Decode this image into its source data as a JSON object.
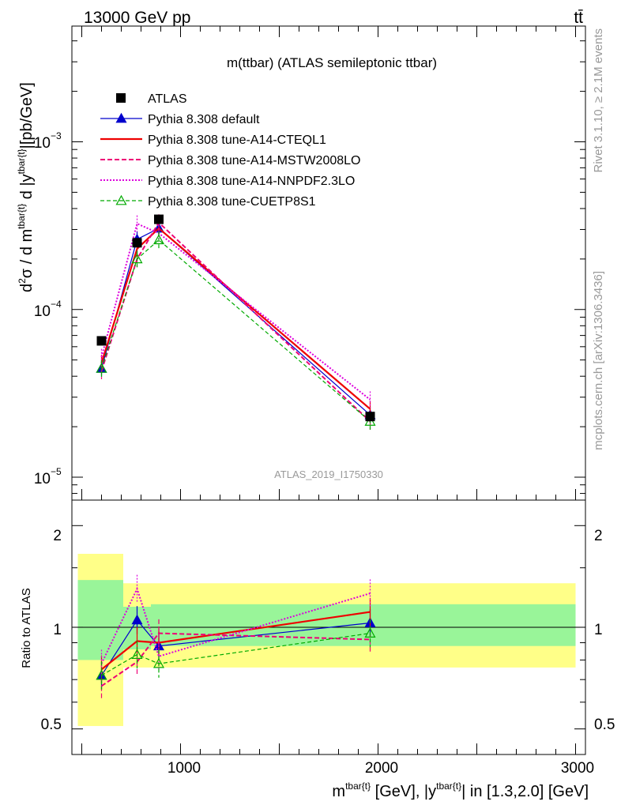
{
  "header": {
    "left": "13000 GeV pp",
    "right": "tt̄",
    "plot_title": "m(ttbar) (ATLAS semileptonic ttbar)",
    "analysis_id": "ATLAS_2019_I1750330",
    "side_top": "Rivet 3.1.10, ≥ 2.1M events",
    "side_bottom": "mcplots.cern.ch [arXiv:1306.3436]"
  },
  "axes": {
    "ylabel_main": "d²σ / d m^{tbar{t}} d |y^{tbar{t}}|[pb/GeV]",
    "ylabel_ratio": "Ratio to ATLAS",
    "xlabel": "m^{tbar{t}} [GeV], |y^{tbar{t}}| in [1.3,2.0] [GeV]",
    "x_tick_labels": [
      "1000",
      "2000",
      "3000"
    ],
    "y_tick_labels_main": [
      "10",
      "10",
      "10"
    ],
    "y_tick_exponents_main": [
      "−3",
      "−4",
      "−5"
    ],
    "y_tick_labels_ratio": [
      "2",
      "1",
      "0.5"
    ]
  },
  "chart_data": {
    "type": "line",
    "xlim": [
      450,
      3050
    ],
    "ylim_main": [
      7.3e-06,
      0.0049
    ],
    "ylim_ratio": [
      0.42,
      2.38
    ],
    "y_scale": "log",
    "x": [
      600,
      780,
      890,
      1960
    ],
    "bin_edges": [
      480,
      710,
      850,
      950,
      3000
    ],
    "series": [
      {
        "name": "ATLAS",
        "key": "data",
        "values": [
          6.5e-05,
          0.00025,
          0.000345,
          2.3e-05
        ],
        "color": "#000000"
      },
      {
        "name": "Pythia 8.308 default",
        "key": "default",
        "values": [
          4.45e-05,
          0.000262,
          0.000305,
          2.35e-05
        ],
        "ratio": [
          0.72,
          1.05,
          0.88,
          1.03
        ],
        "color": "#0000cc"
      },
      {
        "name": "Pythia 8.308 tune-A14-CTEQL1",
        "key": "cteq",
        "values": [
          4.8e-05,
          0.00023,
          0.000305,
          2.55e-05
        ],
        "ratio": [
          0.75,
          0.91,
          0.9,
          1.11
        ],
        "color": "#ee0000"
      },
      {
        "name": "Pythia 8.308 tune-A14-MSTW2008LO",
        "key": "mstw",
        "values": [
          4.3e-05,
          0.0002,
          0.00033,
          2.15e-05
        ],
        "ratio": [
          0.67,
          0.79,
          0.96,
          0.92
        ],
        "color": "#ee0077"
      },
      {
        "name": "Pythia 8.308 tune-A14-NNPDF2.3LO",
        "key": "nnpdf",
        "values": [
          5.2e-05,
          0.000325,
          0.000285,
          2.9e-05
        ],
        "ratio": [
          0.78,
          1.3,
          0.82,
          1.26
        ],
        "color": "#dd00dd"
      },
      {
        "name": "Pythia 8.308 tune-CUETP8S1",
        "key": "cuet",
        "values": [
          4.45e-05,
          0.0002,
          0.00026,
          2.15e-05
        ],
        "ratio": [
          0.72,
          0.83,
          0.78,
          0.96
        ],
        "color": "#00aa00"
      }
    ],
    "ratio_bands": {
      "green": [
        [
          0.8,
          1.38
        ],
        [
          0.86,
          1.15
        ],
        [
          0.88,
          1.17
        ],
        [
          0.88,
          1.17
        ]
      ],
      "yellow": [
        [
          0.51,
          1.65
        ],
        [
          0.76,
          1.35
        ],
        [
          0.76,
          1.35
        ],
        [
          0.76,
          1.35
        ]
      ]
    },
    "legend_position": "top-left"
  }
}
